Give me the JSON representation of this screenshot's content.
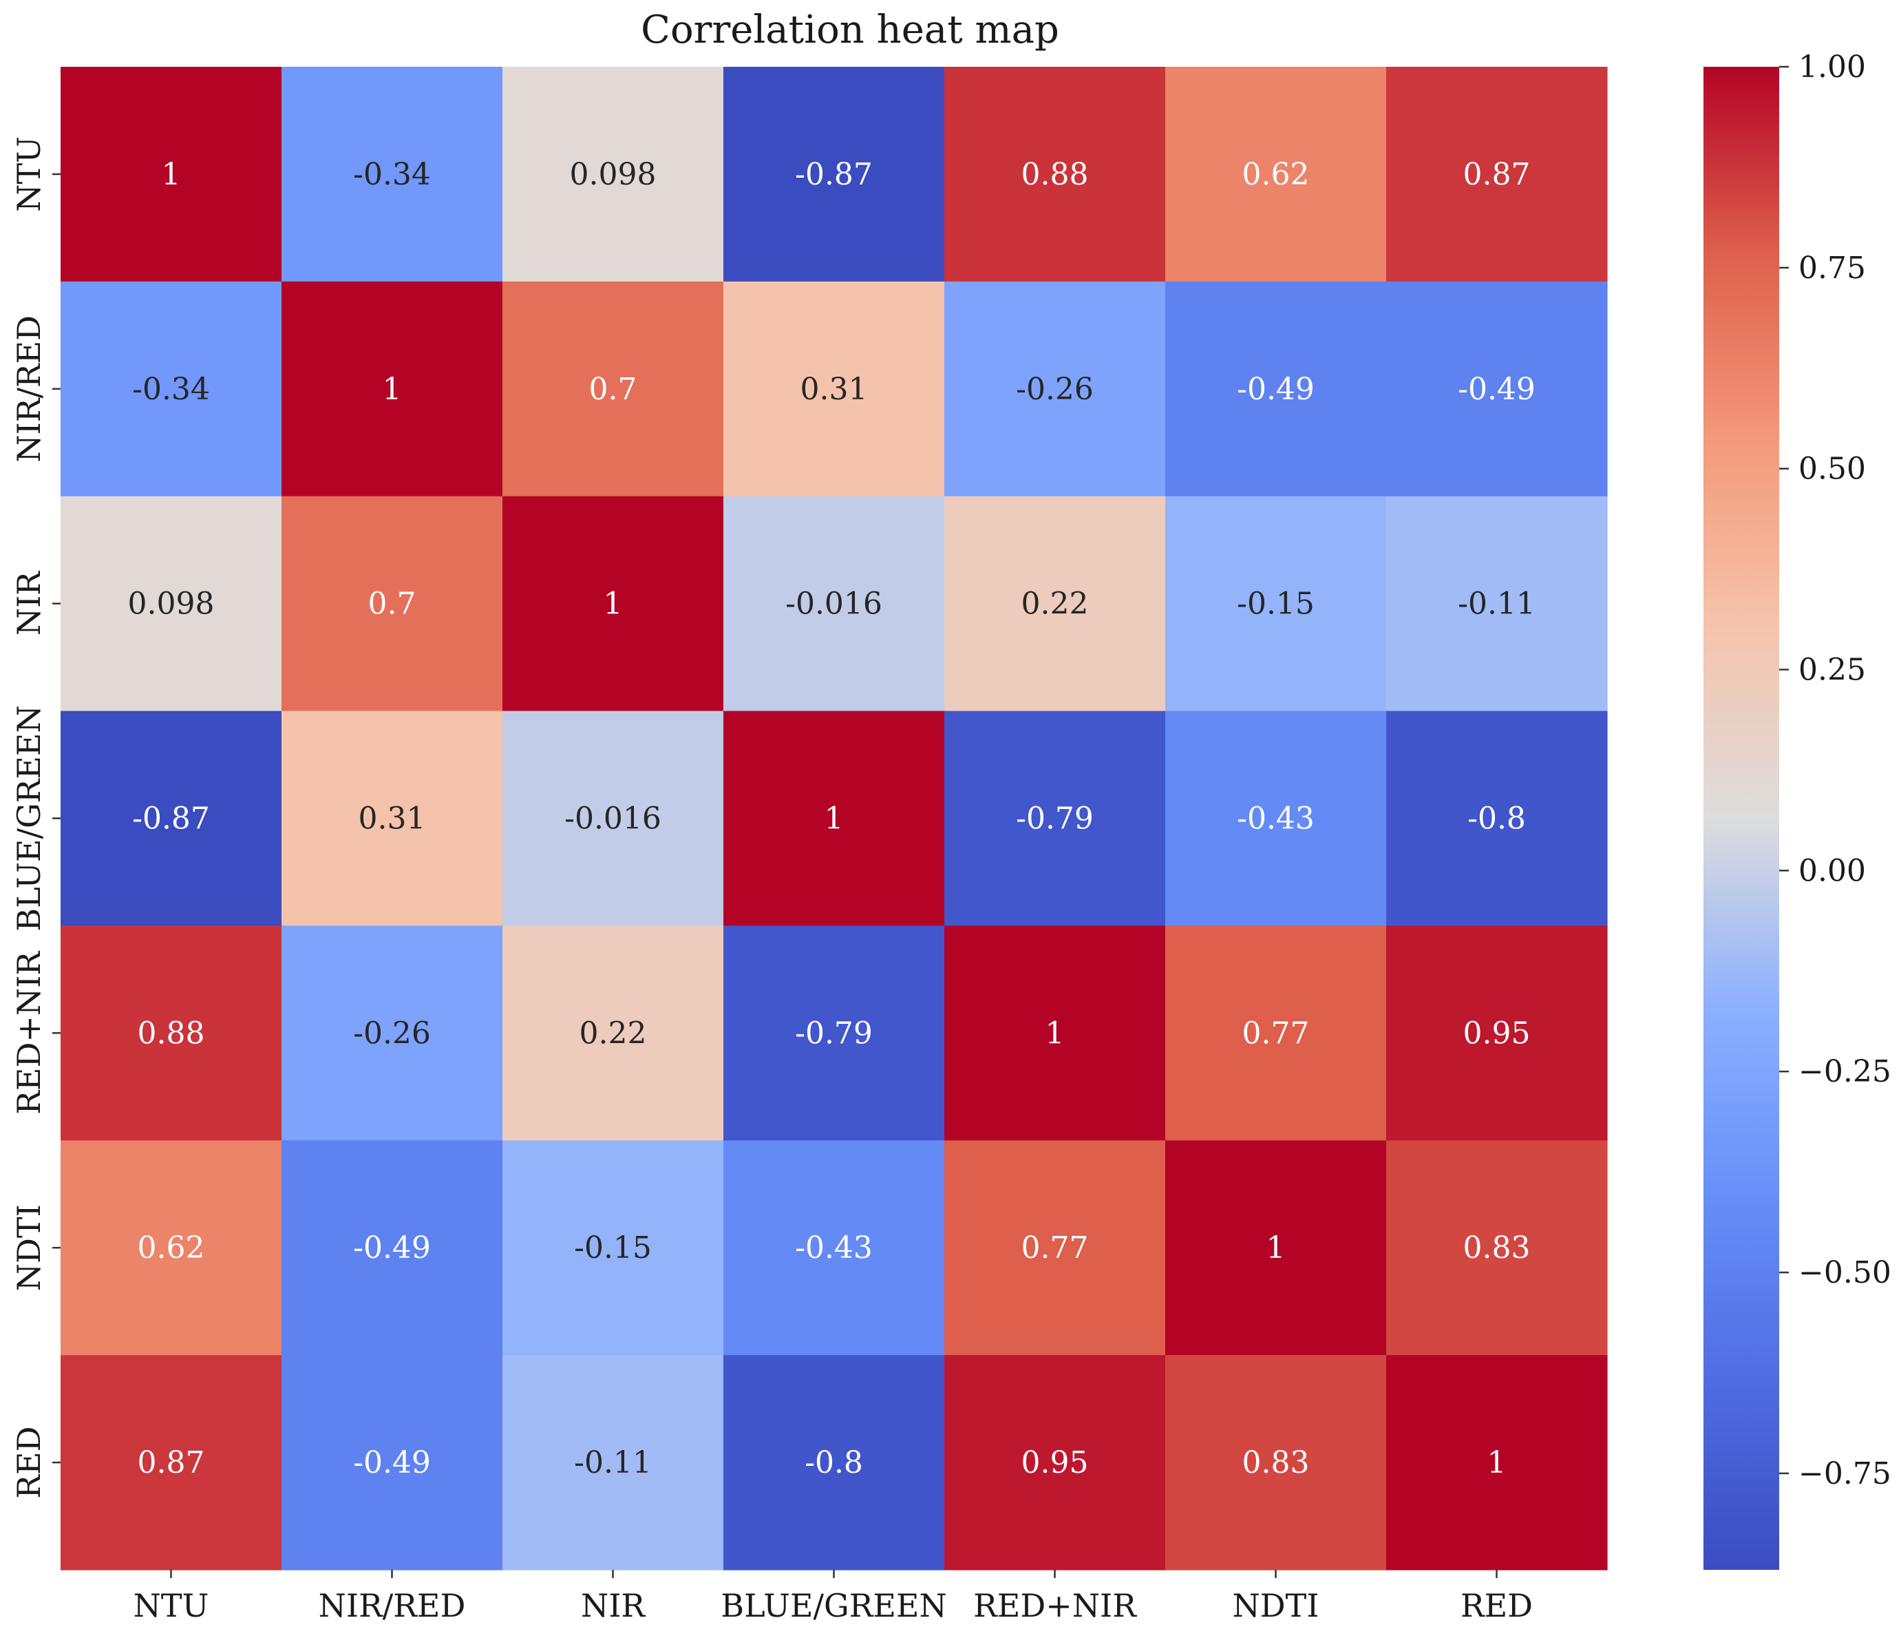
{
  "chart_data": {
    "type": "heatmap",
    "title": "Correlation heat map",
    "xlabel": "",
    "ylabel": "",
    "categories_x": [
      "NTU",
      "NIR/RED",
      "NIR",
      "BLUE/GREEN",
      "RED+NIR",
      "NDTI",
      "RED"
    ],
    "categories_y": [
      "NTU",
      "NIR/RED",
      "NIR",
      "BLUE/GREEN",
      "RED+NIR",
      "NDTI",
      "RED"
    ],
    "values": [
      [
        1,
        -0.34,
        0.098,
        -0.87,
        0.88,
        0.62,
        0.87
      ],
      [
        -0.34,
        1,
        0.7,
        0.31,
        -0.26,
        -0.49,
        -0.49
      ],
      [
        0.098,
        0.7,
        1,
        -0.016,
        0.22,
        -0.15,
        -0.11
      ],
      [
        -0.87,
        0.31,
        -0.016,
        1,
        -0.79,
        -0.43,
        -0.8
      ],
      [
        0.88,
        -0.26,
        0.22,
        -0.79,
        1,
        0.77,
        0.95
      ],
      [
        0.62,
        -0.49,
        -0.15,
        -0.43,
        0.77,
        1,
        0.83
      ],
      [
        0.87,
        -0.49,
        -0.11,
        -0.8,
        0.95,
        0.83,
        1
      ]
    ],
    "annotations": [
      [
        "1",
        "-0.34",
        "0.098",
        "-0.87",
        "0.88",
        "0.62",
        "0.87"
      ],
      [
        "-0.34",
        "1",
        "0.7",
        "0.31",
        "-0.26",
        "-0.49",
        "-0.49"
      ],
      [
        "0.098",
        "0.7",
        "1",
        "-0.016",
        "0.22",
        "-0.15",
        "-0.11"
      ],
      [
        "-0.87",
        "0.31",
        "-0.016",
        "1",
        "-0.79",
        "-0.43",
        "-0.8"
      ],
      [
        "0.88",
        "-0.26",
        "0.22",
        "-0.79",
        "1",
        "0.77",
        "0.95"
      ],
      [
        "0.62",
        "-0.49",
        "-0.15",
        "-0.43",
        "0.77",
        "1",
        "0.83"
      ],
      [
        "0.87",
        "-0.49",
        "-0.11",
        "-0.8",
        "0.95",
        "0.83",
        "1"
      ]
    ],
    "colormap": "coolwarm",
    "colorbar": {
      "vmin": -0.87,
      "vmax": 1.0,
      "ticks": [
        1.0,
        0.75,
        0.5,
        0.25,
        0.0,
        -0.25,
        -0.5,
        -0.75
      ],
      "tick_labels": [
        "1.00",
        "0.75",
        "0.50",
        "0.25",
        "0.00",
        "−0.25",
        "−0.50",
        "−0.75"
      ],
      "placement": "right"
    },
    "colors": {
      "low": "#3b4cc0",
      "mid": "#dddddd",
      "high": "#b40426",
      "annotation_light": "#ffffff",
      "annotation_dark": "#262626"
    }
  }
}
